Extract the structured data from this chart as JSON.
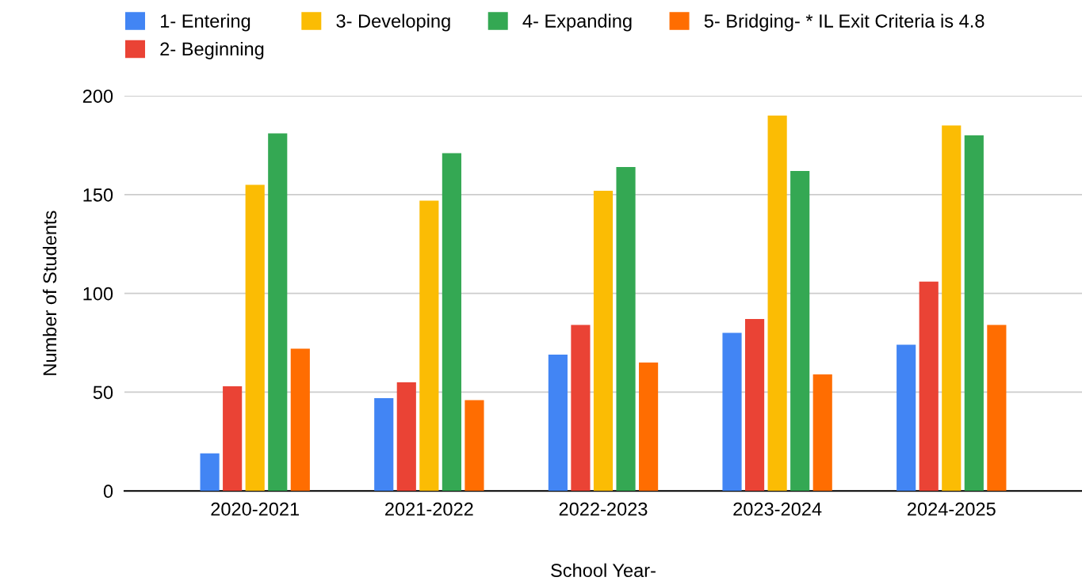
{
  "chart_data": {
    "type": "bar",
    "xlabel": "School Year-",
    "ylabel": "Number of Students",
    "categories": [
      "2020-2021",
      "2021-2022",
      "2022-2023",
      "2023-2024",
      "2024-2025"
    ],
    "series": [
      {
        "name": "1- Entering",
        "color": "#4285f4",
        "values": [
          19,
          47,
          69,
          80,
          74
        ]
      },
      {
        "name": "2- Beginning",
        "color": "#ea4335",
        "values": [
          53,
          55,
          84,
          87,
          106
        ]
      },
      {
        "name": "3- Developing",
        "color": "#fbbc04",
        "values": [
          155,
          147,
          152,
          190,
          185
        ]
      },
      {
        "name": "4- Expanding",
        "color": "#34a853",
        "values": [
          181,
          171,
          164,
          162,
          180
        ]
      },
      {
        "name": "5- Bridging- * IL Exit Criteria is 4.8",
        "color": "#ff6d01",
        "values": [
          72,
          46,
          65,
          59,
          84
        ]
      }
    ],
    "ylim": [
      0,
      200
    ],
    "yticks": [
      0,
      50,
      100,
      150,
      200
    ],
    "grid": "y",
    "legend": "top"
  }
}
